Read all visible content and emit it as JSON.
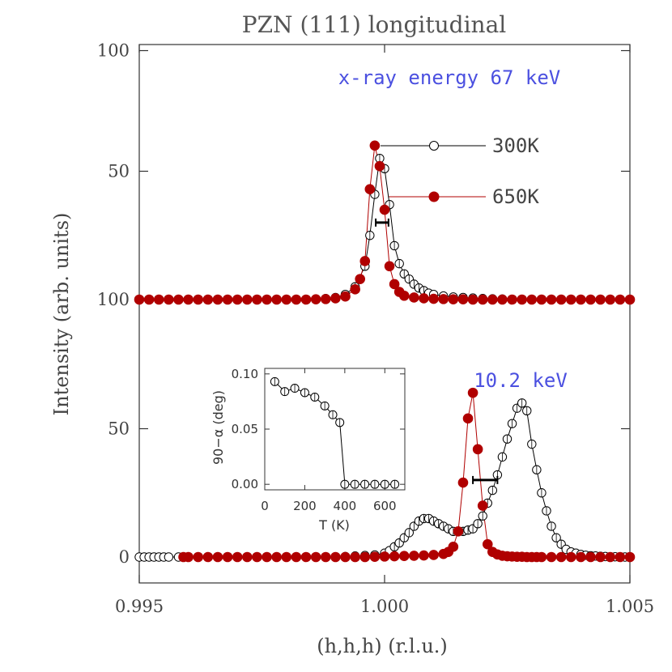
{
  "chart_data": {
    "type": "scatter",
    "title": "PZN (111) longitudinal",
    "xlabel": "(h,h,h) (r.l.u.)",
    "ylabel": "Intensity (arb. units)",
    "xlim": [
      0.995,
      1.005
    ],
    "x_ticks": [
      "0.995",
      "1.000",
      "1.005"
    ],
    "y_ticks_lower": [
      "0",
      "50"
    ],
    "y_ticks_upper": [
      "100",
      "50",
      "100"
    ],
    "grid": false,
    "annotations": {
      "upper_energy": "x-ray energy 67 keV",
      "lower_energy": "10.2 keV",
      "annotation_color": "#4b50e0"
    },
    "legend": {
      "placement": "top-right",
      "entries": [
        {
          "label": "300K",
          "marker": "open-circle",
          "color": "#000000"
        },
        {
          "label": "650K",
          "marker": "filled-circle",
          "color": "#b00000"
        }
      ]
    },
    "panels": [
      {
        "name": "67 keV (upper, offset)",
        "series": [
          {
            "name": "300K",
            "x": [
              0.995,
              0.9952,
              0.9954,
              0.9956,
              0.9958,
              0.996,
              0.9962,
              0.9964,
              0.9966,
              0.9968,
              0.997,
              0.9972,
              0.9974,
              0.9976,
              0.9978,
              0.998,
              0.9982,
              0.9984,
              0.9986,
              0.9988,
              0.999,
              0.9992,
              0.9994,
              0.9996,
              0.9997,
              0.9998,
              0.9999,
              1.0,
              1.0001,
              1.0002,
              1.0003,
              1.0004,
              1.0005,
              1.0006,
              1.0007,
              1.0008,
              1.0009,
              1.001,
              1.0012,
              1.0014,
              1.0016,
              1.0018,
              1.002,
              1.0022,
              1.0024,
              1.0026,
              1.0028,
              1.003,
              1.0032,
              1.0034,
              1.0036,
              1.0038,
              1.004,
              1.0042,
              1.0044,
              1.0046,
              1.0048,
              1.005
            ],
            "y": [
              0,
              0,
              0,
              0,
              0,
              0,
              0,
              0,
              0,
              0,
              0,
              0,
              0,
              0,
              0,
              0,
              0,
              0.1,
              0.2,
              0.4,
              0.8,
              2,
              5,
              13,
              25,
              41,
              55,
              51,
              37,
              21,
              14,
              10,
              8,
              6,
              4.5,
              3.5,
              2.5,
              2,
              1.4,
              1,
              0.8,
              0.6,
              0.4,
              0.3,
              0.2,
              0.1,
              0.1,
              0,
              0,
              0,
              0,
              0,
              0,
              0,
              0,
              0,
              0,
              0
            ]
          },
          {
            "name": "650K",
            "x": [
              0.995,
              0.9952,
              0.9954,
              0.9956,
              0.9958,
              0.996,
              0.9962,
              0.9964,
              0.9966,
              0.9968,
              0.997,
              0.9972,
              0.9974,
              0.9976,
              0.9978,
              0.998,
              0.9982,
              0.9984,
              0.9986,
              0.9988,
              0.999,
              0.9992,
              0.9994,
              0.9995,
              0.9996,
              0.9997,
              0.9998,
              0.9999,
              1.0,
              1.0001,
              1.0002,
              1.0003,
              1.0004,
              1.0006,
              1.0008,
              1.001,
              1.0012,
              1.0014,
              1.0016,
              1.0018,
              1.002,
              1.0022,
              1.0024,
              1.0026,
              1.0028,
              1.003,
              1.0032,
              1.0034,
              1.0036,
              1.0038,
              1.004,
              1.0042,
              1.0044,
              1.0046,
              1.0048,
              1.005
            ],
            "y": [
              0,
              0,
              0,
              0,
              0,
              0,
              0,
              0,
              0,
              0,
              0,
              0,
              0,
              0,
              0,
              0,
              0,
              0,
              0.1,
              0.2,
              0.5,
              1.2,
              4,
              8,
              15,
              43,
              60,
              52,
              35,
              13,
              6,
              3,
              1.5,
              0.8,
              0.5,
              0.3,
              0.2,
              0.1,
              0.1,
              0,
              0,
              0,
              0,
              0,
              0,
              0,
              0,
              0,
              0,
              0,
              0,
              0,
              0,
              0,
              0,
              0
            ]
          }
        ],
        "resolution_bar": {
          "x": [
            0.99982,
            1.00008
          ],
          "y": 30
        }
      },
      {
        "name": "10.2 keV (lower)",
        "series": [
          {
            "name": "300K",
            "x": [
              0.995,
              0.9951,
              0.9952,
              0.9953,
              0.9954,
              0.9955,
              0.9956,
              0.9958,
              0.996,
              0.9962,
              0.9964,
              0.9966,
              0.9968,
              0.997,
              0.9972,
              0.9974,
              0.9976,
              0.9978,
              0.998,
              0.9982,
              0.9984,
              0.9986,
              0.9988,
              0.999,
              0.9992,
              0.9994,
              0.9996,
              0.9998,
              1.0,
              1.0001,
              1.0002,
              1.0003,
              1.0004,
              1.0005,
              1.0006,
              1.0007,
              1.0008,
              1.0009,
              1.001,
              1.0011,
              1.0012,
              1.0013,
              1.0014,
              1.0015,
              1.0016,
              1.0017,
              1.0018,
              1.0019,
              1.002,
              1.0021,
              1.0022,
              1.0023,
              1.0024,
              1.0025,
              1.0026,
              1.0027,
              1.0028,
              1.0029,
              1.003,
              1.0031,
              1.0032,
              1.0033,
              1.0034,
              1.0035,
              1.0036,
              1.0037,
              1.0038,
              1.0039,
              1.004,
              1.0041,
              1.0042,
              1.0043,
              1.0044,
              1.0045,
              1.0046,
              1.0047,
              1.0048,
              1.0049,
              1.005
            ],
            "y": [
              0,
              0,
              0,
              0,
              0,
              0,
              0,
              0,
              0,
              0,
              0,
              0,
              0,
              0,
              0,
              0,
              0,
              0,
              0,
              0,
              0,
              0,
              0,
              0.1,
              0.2,
              0.4,
              0.6,
              0.8,
              1.5,
              2.5,
              4,
              5.5,
              7.5,
              9.5,
              12,
              14,
              15,
              15,
              14,
              13,
              12,
              11,
              10,
              10,
              10,
              10.5,
              11,
              13,
              16,
              21,
              26,
              32,
              39,
              46,
              52,
              58,
              60,
              57,
              44,
              34,
              25,
              18,
              12,
              7.5,
              5,
              3,
              2,
              1.5,
              1,
              0.7,
              0.5,
              0.4,
              0.3,
              0.2,
              0.1,
              0.1,
              0,
              0,
              0
            ]
          },
          {
            "name": "650K",
            "x": [
              0.9959,
              0.996,
              0.9962,
              0.9964,
              0.9966,
              0.9968,
              0.997,
              0.9972,
              0.9974,
              0.9976,
              0.9978,
              0.998,
              0.9982,
              0.9984,
              0.9986,
              0.9988,
              0.999,
              0.9992,
              0.9994,
              0.9996,
              0.9998,
              1.0,
              1.0002,
              1.0004,
              1.0006,
              1.0008,
              1.001,
              1.0012,
              1.0013,
              1.0014,
              1.0015,
              1.0016,
              1.0017,
              1.0018,
              1.0019,
              1.002,
              1.0021,
              1.0022,
              1.0023,
              1.0024,
              1.0025,
              1.0026,
              1.0027,
              1.0028,
              1.0029,
              1.003,
              1.0031,
              1.0032,
              1.0034,
              1.0036,
              1.0038,
              1.004,
              1.0042,
              1.0044,
              1.0046,
              1.0048,
              1.005
            ],
            "y": [
              0,
              0,
              0,
              0,
              0,
              0,
              0,
              0,
              0,
              0,
              0,
              0,
              0,
              0,
              0,
              0,
              0,
              0,
              0,
              0,
              0.1,
              0.2,
              0.3,
              0.4,
              0.5,
              0.6,
              0.8,
              1.2,
              2,
              4,
              10,
              29,
              54,
              64,
              42,
              20,
              5,
              2,
              1,
              0.5,
              0.3,
              0.2,
              0.1,
              0.1,
              0,
              0,
              0,
              0,
              0,
              0,
              0,
              0,
              0,
              0,
              0,
              0,
              0
            ]
          }
        ],
        "resolution_bar": {
          "x": [
            1.0018,
            1.0023
          ],
          "y": 30
        }
      }
    ],
    "inset": {
      "type": "scatter",
      "xlabel": "T (K)",
      "ylabel": "90−α (deg)",
      "xlim": [
        0,
        700
      ],
      "ylim": [
        -0.005,
        0.105
      ],
      "x_ticks": [
        "0",
        "200",
        "400",
        "600"
      ],
      "y_ticks": [
        "0.00",
        "0.05",
        "0.10"
      ],
      "series": [
        {
          "name": "300K",
          "x": [
            50,
            100,
            150,
            200,
            250,
            300,
            340,
            375,
            400,
            450,
            500,
            550,
            600,
            650
          ],
          "y": [
            0.093,
            0.084,
            0.087,
            0.083,
            0.079,
            0.071,
            0.063,
            0.056,
            0.0,
            0.0,
            0.0,
            0.0,
            0.0,
            0.0
          ]
        }
      ]
    }
  }
}
